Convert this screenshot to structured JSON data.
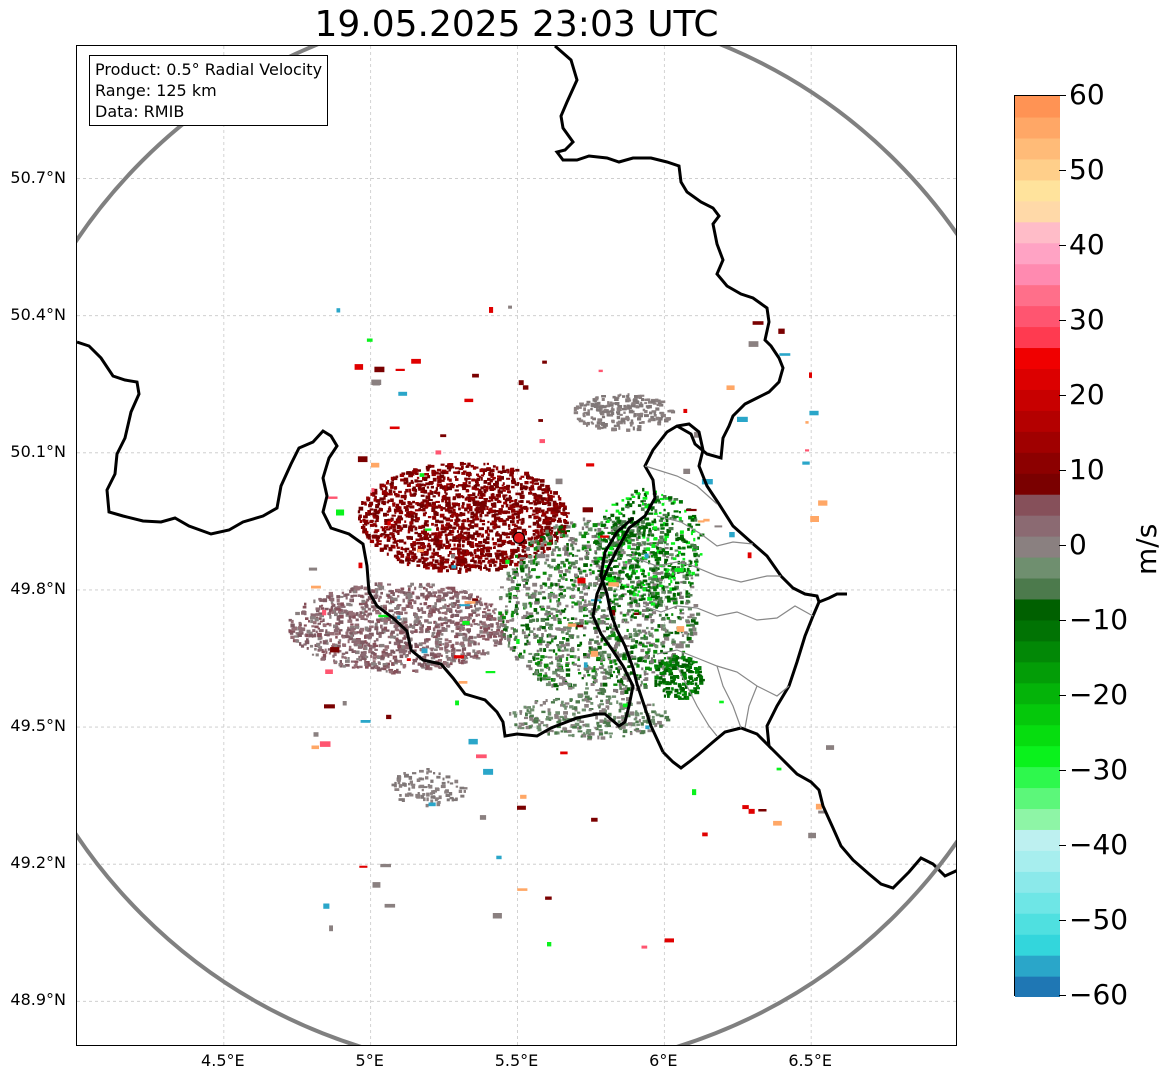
{
  "title": "19.05.2025 23:03 UTC",
  "info_box": {
    "product": "Product: 0.5° Radial Velocity",
    "range": "Range: 125 km",
    "data": "Data: RMIB"
  },
  "map": {
    "lat_labels": [
      "50.7°N",
      "50.4°N",
      "50.1°N",
      "49.8°N",
      "49.5°N",
      "49.2°N",
      "48.9°N"
    ],
    "lon_labels": [
      "4.5°E",
      "5°E",
      "5.5°E",
      "6°E",
      "6.5°E"
    ],
    "extent": {
      "lon_min": 4.0,
      "lon_max": 7.0,
      "lat_min": 48.8,
      "lat_max": 50.99
    },
    "radar_site": {
      "lon": 5.505,
      "lat": 49.914
    },
    "range_ring_color": "#808080",
    "radar_marker_color": "#e41a1c"
  },
  "colorbar": {
    "label": "m/s",
    "ticks": [
      "60",
      "50",
      "40",
      "30",
      "20",
      "10",
      "0",
      "−10",
      "−20",
      "−30",
      "−40",
      "−50",
      "−60"
    ],
    "min": -60,
    "max": 60,
    "colors": [
      "#1f77b4",
      "#2aa6c9",
      "#33d6dc",
      "#4fe0e0",
      "#6ee6e6",
      "#8be9ea",
      "#a7eeee",
      "#bdf0f0",
      "#8ef5a6",
      "#5cf77a",
      "#2ef84d",
      "#0af21c",
      "#06dd0f",
      "#05c80b",
      "#04b309",
      "#039d07",
      "#028806",
      "#017304",
      "#006000",
      "#4c7a4c",
      "#6f8f6f",
      "#8a8080",
      "#8b6a72",
      "#86505a",
      "#7a0000",
      "#8c0000",
      "#a00000",
      "#b40000",
      "#c80000",
      "#dc0000",
      "#f00000",
      "#ff3a50",
      "#ff5570",
      "#ff6f8a",
      "#ff8ab0",
      "#ffa3c4",
      "#ffbcc8",
      "#ffd9a8",
      "#ffe39c",
      "#ffcf8a",
      "#ffbb78",
      "#ffa766",
      "#ff9354"
    ]
  },
  "icons": {
    "radar": "radar-site-marker"
  }
}
